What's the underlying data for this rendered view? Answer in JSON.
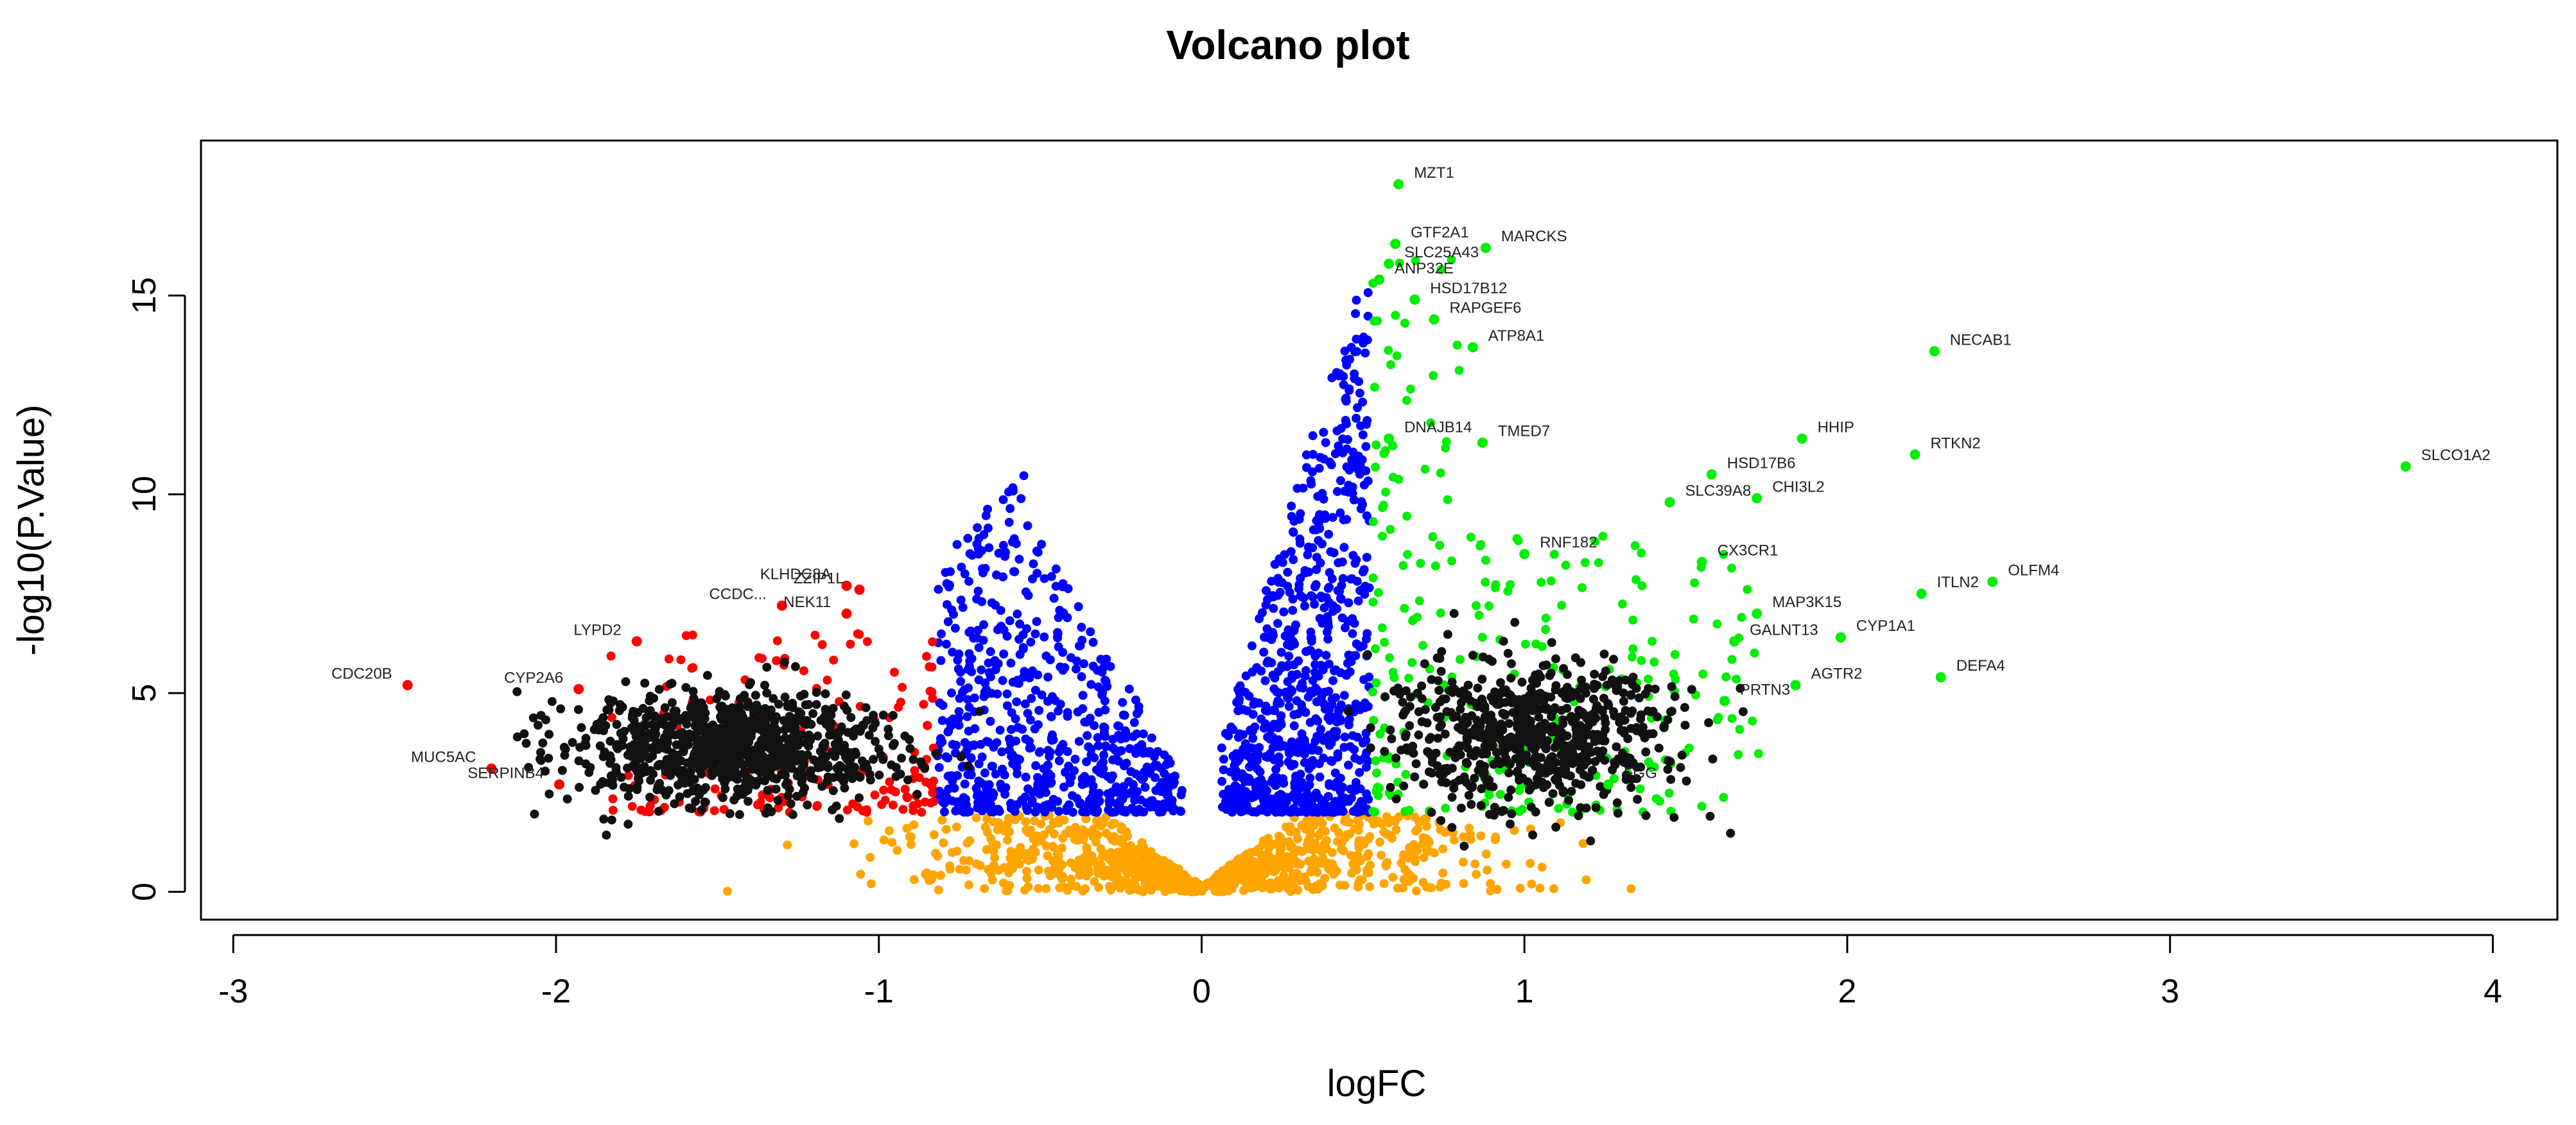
{
  "chart_data": {
    "type": "scatter",
    "title": "Volcano plot",
    "xlabel": "logFC",
    "ylabel": "-log10(P.Value)",
    "xlim": [
      -3.1,
      4.2
    ],
    "ylim": [
      -0.7,
      18.9
    ],
    "xticks": [
      -3,
      -2,
      -1,
      0,
      1,
      2,
      3,
      4
    ],
    "xtick_labels": [
      "-3",
      "-2",
      "-1",
      "0",
      "1",
      "2",
      "3",
      "4"
    ],
    "yticks": [
      0,
      5,
      10,
      15
    ],
    "ytick_labels": [
      "0",
      "5",
      "10",
      "15"
    ],
    "grid": false,
    "legend": "none",
    "colors": {
      "not_significant": "#FFA500",
      "significant_small_fc": "#0000FF",
      "down_regulated": "#FF0000",
      "up_regulated": "#00EE00",
      "label_text": "#222222"
    },
    "labeled_points": [
      {
        "gene": "MZT1",
        "x": 0.61,
        "y": 17.8,
        "group": "up"
      },
      {
        "gene": "GTF2A1",
        "x": 0.6,
        "y": 16.3,
        "group": "up"
      },
      {
        "gene": "MARCKS",
        "x": 0.88,
        "y": 16.2,
        "group": "up"
      },
      {
        "gene": "SLC25A43",
        "x": 0.58,
        "y": 15.8,
        "group": "up"
      },
      {
        "gene": "ANP32E",
        "x": 0.55,
        "y": 15.4,
        "group": "up"
      },
      {
        "gene": "HSD17B12",
        "x": 0.66,
        "y": 14.9,
        "group": "up"
      },
      {
        "gene": "RAPGEF6",
        "x": 0.72,
        "y": 14.4,
        "group": "up"
      },
      {
        "gene": "NECAB1",
        "x": 2.27,
        "y": 13.6,
        "group": "up"
      },
      {
        "gene": "ATP8A1",
        "x": 0.84,
        "y": 13.7,
        "group": "up"
      },
      {
        "gene": "DNAJB14",
        "x": 0.58,
        "y": 11.4,
        "group": "up"
      },
      {
        "gene": "TMED7",
        "x": 0.87,
        "y": 11.3,
        "group": "up"
      },
      {
        "gene": "HHIP",
        "x": 1.86,
        "y": 11.4,
        "group": "up"
      },
      {
        "gene": "RTKN2",
        "x": 2.21,
        "y": 11.0,
        "group": "up"
      },
      {
        "gene": "SLCO1A2",
        "x": 3.73,
        "y": 10.7,
        "group": "up"
      },
      {
        "gene": "HSD17B6",
        "x": 1.58,
        "y": 10.5,
        "group": "up"
      },
      {
        "gene": "SLC39A8",
        "x": 1.45,
        "y": 9.8,
        "group": "up"
      },
      {
        "gene": "CHI3L2",
        "x": 1.72,
        "y": 9.9,
        "group": "up"
      },
      {
        "gene": "RNF182",
        "x": 1.0,
        "y": 8.5,
        "group": "up"
      },
      {
        "gene": "CX3CR1",
        "x": 1.55,
        "y": 8.3,
        "group": "up"
      },
      {
        "gene": "OLFM4",
        "x": 2.45,
        "y": 7.8,
        "group": "up"
      },
      {
        "gene": "ITLN2",
        "x": 2.23,
        "y": 7.5,
        "group": "up"
      },
      {
        "gene": "MAP3K15",
        "x": 1.72,
        "y": 7.0,
        "group": "up"
      },
      {
        "gene": "CYP1A1",
        "x": 1.98,
        "y": 6.4,
        "group": "up"
      },
      {
        "gene": "GALNT13",
        "x": 1.65,
        "y": 6.3,
        "group": "up"
      },
      {
        "gene": "DEFA4",
        "x": 2.29,
        "y": 5.4,
        "group": "up"
      },
      {
        "gene": "AGTR2",
        "x": 1.84,
        "y": 5.2,
        "group": "up"
      },
      {
        "gene": "PRTN3",
        "x": 1.62,
        "y": 4.8,
        "group": "up"
      },
      {
        "gene": "FGG",
        "x": 1.26,
        "y": 2.7,
        "group": "up"
      },
      {
        "gene": "KLHDC8A",
        "x": -1.1,
        "y": 7.7,
        "group": "down"
      },
      {
        "gene": "ZZIP1L",
        "x": -1.06,
        "y": 7.6,
        "group": "down"
      },
      {
        "gene": "NEK11",
        "x": -1.1,
        "y": 7.0,
        "group": "down"
      },
      {
        "gene": "CCDC...",
        "x": -1.3,
        "y": 7.2,
        "group": "down"
      },
      {
        "gene": "LYPD2",
        "x": -1.75,
        "y": 6.3,
        "group": "down"
      },
      {
        "gene": "CDC20B",
        "x": -2.46,
        "y": 5.2,
        "group": "down"
      },
      {
        "gene": "CYP2A6",
        "x": -1.93,
        "y": 5.1,
        "group": "down"
      },
      {
        "gene": "MUC5AC",
        "x": -2.2,
        "y": 3.1,
        "group": "down"
      },
      {
        "gene": "SERPINB4",
        "x": -1.99,
        "y": 2.7,
        "group": "down"
      }
    ]
  }
}
